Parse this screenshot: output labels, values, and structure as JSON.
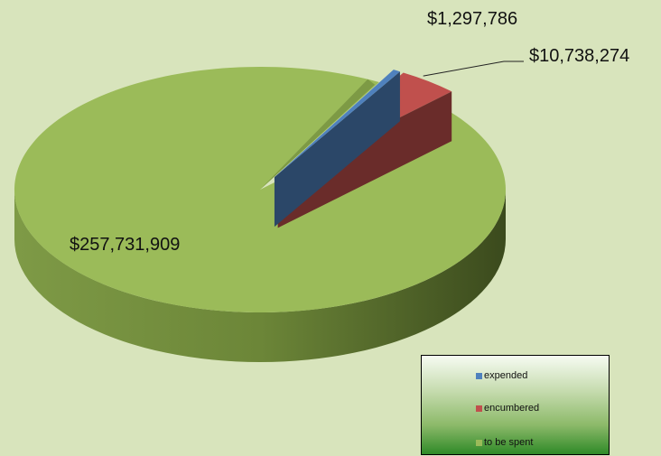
{
  "chart_data": {
    "type": "pie",
    "style": "3d",
    "title": "",
    "categories": [
      "expended",
      "encumbered",
      "to be spent"
    ],
    "values": [
      1297786,
      10738274,
      257731909
    ],
    "data_labels": [
      "$1,297,786",
      "$10,738,274",
      "$257,731,909"
    ],
    "colors": {
      "expended": "#4f81bd",
      "encumbered": "#c0504d",
      "to be spent": "#9bbb59"
    },
    "legend": {
      "placement": "bottom-right",
      "entries": [
        "expended",
        "encumbered",
        "to be spent"
      ]
    },
    "exploded_slices": [
      "expended",
      "encumbered"
    ]
  }
}
